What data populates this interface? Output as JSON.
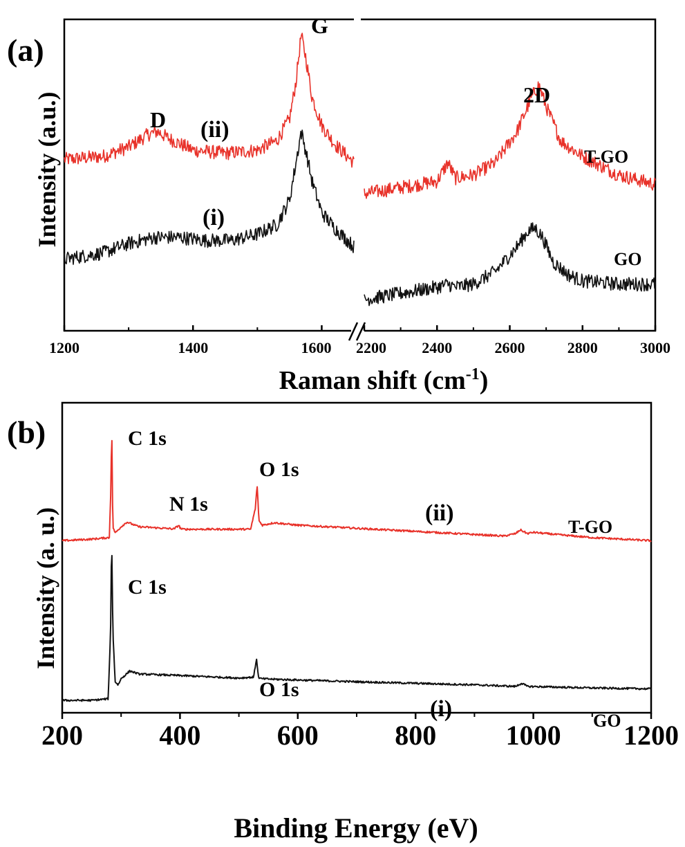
{
  "chart_data": [
    {
      "panel_label": "(a)",
      "type": "line",
      "xlabel": "Raman shift (cm",
      "xlabel_sup": "-1",
      "xlabel_close": ")",
      "ylabel": "Intensity (a.u.)",
      "x_break": [
        1650,
        2200
      ],
      "xlim_left": [
        1200,
        1650
      ],
      "xlim_right": [
        2200,
        3000
      ],
      "xticks_left": [
        1200,
        1400,
        1600
      ],
      "xticks_right": [
        2200,
        2400,
        2600,
        2800,
        3000
      ],
      "xtick_labels": [
        "1200",
        "1400",
        "1600",
        "2200",
        "2400",
        "2600",
        "2800",
        "3000"
      ],
      "ylim": [
        0,
        1
      ],
      "grid": false,
      "series": [
        {
          "name": "T-GO",
          "tag": "(ii)",
          "color": "#e8322a",
          "x": [
            1200,
            1260,
            1300,
            1330,
            1345,
            1360,
            1400,
            1450,
            1500,
            1530,
            1550,
            1560,
            1568,
            1575,
            1585,
            1600,
            1620,
            1650,
            2200,
            2300,
            2400,
            2430,
            2450,
            2500,
            2560,
            2620,
            2660,
            2680,
            2700,
            2740,
            2800,
            2900,
            3000
          ],
          "y": [
            0.55,
            0.56,
            0.59,
            0.63,
            0.64,
            0.62,
            0.58,
            0.57,
            0.58,
            0.61,
            0.68,
            0.8,
            0.95,
            0.88,
            0.75,
            0.66,
            0.6,
            0.54,
            0.44,
            0.46,
            0.48,
            0.54,
            0.49,
            0.5,
            0.54,
            0.64,
            0.75,
            0.79,
            0.72,
            0.61,
            0.56,
            0.5,
            0.47
          ]
        },
        {
          "name": "GO",
          "tag": "(i)",
          "color": "#111111",
          "x": [
            1200,
            1260,
            1300,
            1340,
            1380,
            1420,
            1460,
            1500,
            1530,
            1550,
            1560,
            1568,
            1575,
            1585,
            1600,
            1620,
            1650,
            2200,
            2300,
            2400,
            2430,
            2450,
            2500,
            2560,
            2620,
            2650,
            2670,
            2690,
            2720,
            2760,
            2800,
            2900,
            3000
          ],
          "y": [
            0.23,
            0.25,
            0.28,
            0.3,
            0.3,
            0.29,
            0.29,
            0.31,
            0.34,
            0.42,
            0.54,
            0.64,
            0.58,
            0.48,
            0.38,
            0.33,
            0.27,
            0.1,
            0.12,
            0.14,
            0.15,
            0.14,
            0.15,
            0.19,
            0.27,
            0.32,
            0.33,
            0.3,
            0.22,
            0.18,
            0.16,
            0.15,
            0.15
          ]
        }
      ],
      "annotations": [
        "D",
        "(ii)",
        "G",
        "2D",
        "T-GO",
        "(i)",
        "GO"
      ]
    },
    {
      "panel_label": "(b)",
      "type": "line",
      "xlabel": "Binding Energy (eV)",
      "ylabel": "Intensity (a. u.)",
      "xlim": [
        200,
        1200
      ],
      "xticks": [
        200,
        400,
        600,
        800,
        1000,
        1200
      ],
      "xtick_labels": [
        "200",
        "400",
        "600",
        "800",
        "1000",
        "1200"
      ],
      "ylim": [
        0,
        1
      ],
      "grid": false,
      "series": [
        {
          "name": "T-GO",
          "tag": "(ii)",
          "color": "#e8322a",
          "x": [
            200,
            250,
            280,
            283,
            284,
            285,
            286,
            290,
            300,
            310,
            330,
            390,
            398,
            400,
            403,
            450,
            520,
            528,
            531,
            534,
            540,
            560,
            600,
            700,
            800,
            900,
            950,
            970,
            978,
            990,
            1000,
            1050,
            1100,
            1150,
            1200
          ],
          "y": [
            0.555,
            0.56,
            0.565,
            0.75,
            0.98,
            0.75,
            0.6,
            0.58,
            0.6,
            0.615,
            0.6,
            0.593,
            0.605,
            0.597,
            0.592,
            0.592,
            0.592,
            0.66,
            0.735,
            0.62,
            0.605,
            0.613,
            0.605,
            0.595,
            0.585,
            0.575,
            0.57,
            0.578,
            0.59,
            0.578,
            0.582,
            0.573,
            0.565,
            0.56,
            0.555
          ]
        },
        {
          "name": "GO",
          "tag": "(i)",
          "color": "#111111",
          "x": [
            200,
            250,
            278,
            282,
            284,
            286,
            290,
            295,
            300,
            315,
            330,
            400,
            500,
            525,
            530,
            533,
            537,
            560,
            700,
            900,
            970,
            980,
            990,
            1100,
            1200
          ],
          "y": [
            0.04,
            0.04,
            0.045,
            0.25,
            0.58,
            0.26,
            0.1,
            0.09,
            0.11,
            0.135,
            0.125,
            0.12,
            0.112,
            0.115,
            0.175,
            0.115,
            0.11,
            0.108,
            0.1,
            0.09,
            0.085,
            0.095,
            0.085,
            0.08,
            0.077
          ]
        }
      ],
      "annotations": [
        "C 1s",
        "N 1s",
        "O 1s",
        "(ii)",
        "T-GO",
        "C 1s",
        "O 1s",
        "(i)",
        "GO"
      ]
    }
  ]
}
